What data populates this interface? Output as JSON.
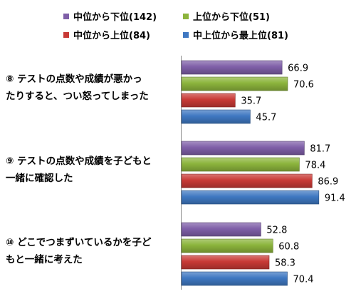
{
  "chart_data": {
    "type": "bar",
    "orientation": "horizontal",
    "categories": [
      "⑧ テストの点数や成績が悪かったりすると、つい怒ってしまった",
      "⑨ テストの点数や成績を子どもと一緒に確認した",
      "⑩ どこでつまずいているかを子どもと一緒に考えた"
    ],
    "category_lines": [
      [
        "⑧ テストの点数や成績が悪かっ",
        "たりすると、つい怒ってしまった"
      ],
      [
        "⑨ テストの点数や成績を子どもと",
        "一緒に確認した"
      ],
      [
        "⑩ どこでつまずいているかを子ど",
        "もと一緒に考えた"
      ]
    ],
    "series": [
      {
        "name": "中位から下位(142)",
        "color": "#7f5fa8",
        "values": [
          66.9,
          81.7,
          52.8
        ]
      },
      {
        "name": "上位から下位(51)",
        "color": "#8cb43c",
        "values": [
          70.6,
          78.4,
          60.8
        ]
      },
      {
        "name": "中位から上位(84)",
        "color": "#c83a36",
        "values": [
          35.7,
          86.9,
          58.3
        ]
      },
      {
        "name": "中上位から最上位(81)",
        "color": "#3f78c2",
        "values": [
          45.7,
          91.4,
          70.4
        ]
      }
    ],
    "xlim": [
      0,
      100
    ],
    "legend_position": "top",
    "data_labels": true,
    "grid": false
  }
}
